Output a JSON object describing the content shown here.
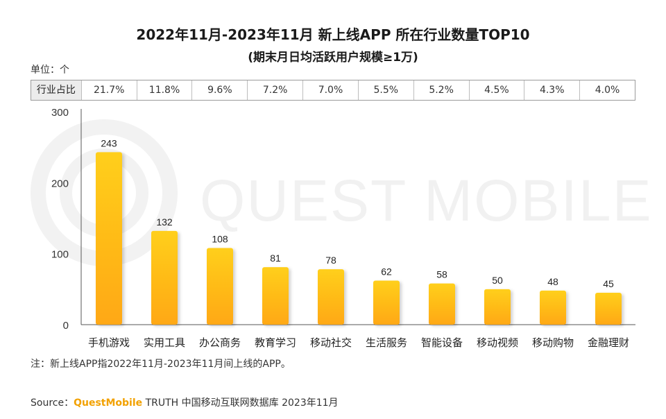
{
  "header": {
    "title": "2022年11月-2023年11月 新上线APP 所在行业数量TOP10",
    "subtitle": "(期末月日均活跃用户规模≥1万)"
  },
  "unit_label": "单位：个",
  "share_table": {
    "header": "行业占比",
    "values": [
      "21.7%",
      "11.8%",
      "9.6%",
      "7.2%",
      "7.0%",
      "5.5%",
      "5.2%",
      "4.5%",
      "4.3%",
      "4.0%"
    ]
  },
  "watermark": "QUEST MOBILE",
  "note": "注：新上线APP指2022年11月-2023年11月间上线的APP。",
  "source": {
    "prefix": "Source：",
    "brand": "QuestMobile",
    "rest": " TRUTH 中国移动互联网数据库 2023年11月"
  },
  "colors": {
    "bar_top": "#ffcf1a",
    "bar_bottom": "#ffa818",
    "brand": "#f2a100",
    "watermark": "#f1f1f1"
  },
  "chart_data": {
    "type": "bar",
    "categories": [
      "手机游戏",
      "实用工具",
      "办公商务",
      "教育学习",
      "移动社交",
      "生活服务",
      "智能设备",
      "移动视频",
      "移动购物",
      "金融理财"
    ],
    "values": [
      243,
      132,
      108,
      81,
      78,
      62,
      58,
      50,
      48,
      45
    ],
    "y_ticks": [
      0,
      100,
      200,
      300
    ],
    "ylim": [
      0,
      300
    ],
    "grid": false,
    "legend": "none"
  }
}
